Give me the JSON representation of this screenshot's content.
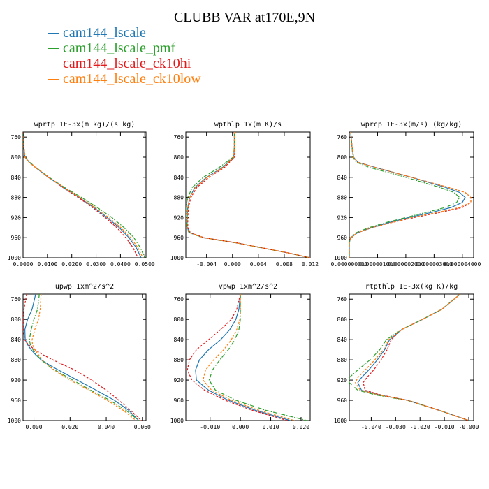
{
  "title": "CLUBB VAR at170E,9N",
  "legend": [
    {
      "name": "cam144_lscale",
      "color": "#1f77b4"
    },
    {
      "name": "cam144_lscale_pmf",
      "color": "#2ca02c"
    },
    {
      "name": "cam144_lscale_ck10hi",
      "color": "#e31a1c"
    },
    {
      "name": "cam144_lscale_ck10low",
      "color": "#ff7f0e"
    }
  ],
  "chart_data": [
    {
      "type": "line",
      "title": "wprtp  1E-3x(m kg)/(s kg)",
      "xlim": [
        0,
        0.0505
      ],
      "ylim": [
        750,
        1000
      ],
      "x_ticks": [
        "0.0000",
        "0.0100",
        "0.0200",
        "0.0300",
        "0.0400",
        "0.0500"
      ],
      "x_tick_values": [
        0,
        0.01,
        0.02,
        0.03,
        0.04,
        0.05
      ],
      "y_ticks": [
        "760",
        "800",
        "840",
        "880",
        "920",
        "960",
        "1000"
      ],
      "y_tick_values": [
        760,
        800,
        840,
        880,
        920,
        960,
        1000
      ],
      "y": [
        750,
        760,
        780,
        800,
        810,
        820,
        840,
        860,
        880,
        900,
        920,
        940,
        960,
        980,
        1000
      ],
      "series": [
        {
          "name": "cam144_lscale",
          "style": "solid",
          "x": [
            0.0004,
            0.0003,
            0.0003,
            0.0008,
            0.0025,
            0.005,
            0.0105,
            0.0165,
            0.023,
            0.029,
            0.0345,
            0.0395,
            0.0435,
            0.0465,
            0.0485
          ]
        },
        {
          "name": "cam144_lscale_pmf",
          "style": "dashdot",
          "x": [
            0.0004,
            0.0003,
            0.0003,
            0.0009,
            0.0027,
            0.0052,
            0.0107,
            0.017,
            0.024,
            0.0305,
            0.0365,
            0.0415,
            0.0455,
            0.0482,
            0.05
          ]
        },
        {
          "name": "cam144_lscale_ck10hi",
          "style": "dashed",
          "x": [
            0.0004,
            0.0003,
            0.0003,
            0.0008,
            0.0025,
            0.005,
            0.0104,
            0.0163,
            0.0226,
            0.0285,
            0.0338,
            0.0385,
            0.0422,
            0.0452,
            0.0472
          ]
        },
        {
          "name": "cam144_lscale_ck10low",
          "style": "dashed",
          "x": [
            0.0004,
            0.0003,
            0.0003,
            0.0008,
            0.0025,
            0.005,
            0.0106,
            0.0167,
            0.0233,
            0.0295,
            0.0352,
            0.0402,
            0.0442,
            0.0472,
            0.0492
          ]
        }
      ]
    },
    {
      "type": "line",
      "title": "wpthlp  1x(m K)/s",
      "xlim": [
        -0.0072,
        0.012
      ],
      "ylim": [
        750,
        1000
      ],
      "x_ticks": [
        "-0.004",
        "0.000",
        "0.004",
        "0.008",
        "0.012"
      ],
      "x_tick_values": [
        -0.004,
        0,
        0.004,
        0.008,
        0.012
      ],
      "y_ticks": [
        "760",
        "800",
        "840",
        "880",
        "920",
        "960",
        "1000"
      ],
      "y_tick_values": [
        760,
        800,
        840,
        880,
        920,
        960,
        1000
      ],
      "y": [
        750,
        780,
        800,
        820,
        840,
        860,
        880,
        900,
        920,
        940,
        950,
        960,
        970,
        980,
        990,
        1000
      ],
      "series": [
        {
          "name": "cam144_lscale",
          "style": "solid",
          "x": [
            0.0003,
            0.0003,
            0.0002,
            -0.0015,
            -0.004,
            -0.0058,
            -0.0066,
            -0.0069,
            -0.007,
            -0.007,
            -0.0066,
            -0.0045,
            0.0005,
            0.0045,
            0.0085,
            0.012
          ]
        },
        {
          "name": "cam144_lscale_pmf",
          "style": "dashdot",
          "x": [
            0.0003,
            0.0003,
            0.0001,
            -0.002,
            -0.0045,
            -0.0062,
            -0.0069,
            -0.0072,
            -0.0072,
            -0.0071,
            -0.0067,
            -0.0046,
            0.0004,
            0.0044,
            0.0084,
            0.0119
          ]
        },
        {
          "name": "cam144_lscale_ck10hi",
          "style": "dashed",
          "x": [
            0.0003,
            0.0003,
            0.0003,
            -0.0012,
            -0.0036,
            -0.0055,
            -0.0064,
            -0.0068,
            -0.0069,
            -0.0069,
            -0.0065,
            -0.0044,
            0.0005,
            0.0045,
            0.0085,
            0.012
          ]
        },
        {
          "name": "cam144_lscale_ck10low",
          "style": "dashed",
          "x": [
            0.0003,
            0.0003,
            0.0002,
            -0.0014,
            -0.0039,
            -0.0057,
            -0.0066,
            -0.0069,
            -0.007,
            -0.007,
            -0.0066,
            -0.0045,
            0.0005,
            0.0045,
            0.0085,
            0.012
          ]
        }
      ]
    },
    {
      "type": "line",
      "title": "wprcp  1E-3x(m/s) (kg/kg)",
      "xlim": [
        0,
        4.4e-06
      ],
      "ylim": [
        750,
        1000
      ],
      "x_ticks": [
        "0.000000000",
        "0.000001000",
        "0.000002000",
        "0.000003000",
        "0.000004000"
      ],
      "x_tick_values": [
        0,
        1e-06,
        2e-06,
        3e-06,
        4e-06
      ],
      "y_ticks": [
        "760",
        "800",
        "840",
        "880",
        "920",
        "960",
        "1000"
      ],
      "y_tick_values": [
        760,
        800,
        840,
        880,
        920,
        960,
        1000
      ],
      "y": [
        750,
        780,
        800,
        810,
        820,
        840,
        860,
        870,
        880,
        890,
        900,
        910,
        920,
        930,
        940,
        950,
        960,
        970,
        980,
        1000
      ],
      "series": [
        {
          "name": "cam144_lscale",
          "style": "solid",
          "x": [
            5e-08,
            1e-07,
            1.5e-07,
            3e-07,
            9e-07,
            2.2e-06,
            3.4e-06,
            3.9e-06,
            4.1e-06,
            4e-06,
            3.6e-06,
            2.9e-06,
            2.1e-06,
            1.4e-06,
            8e-07,
            3e-07,
            5e-08,
            0,
            0,
            0
          ]
        },
        {
          "name": "cam144_lscale_pmf",
          "style": "dashdot",
          "x": [
            5e-08,
            1e-07,
            1.2e-07,
            2.5e-07,
            7e-07,
            2e-06,
            3.2e-06,
            3.7e-06,
            3.9e-06,
            3.8e-06,
            3.4e-06,
            2.7e-06,
            2e-06,
            1.3e-06,
            7e-07,
            2.5e-07,
            5e-08,
            0,
            0,
            0
          ]
        },
        {
          "name": "cam144_lscale_ck10hi",
          "style": "dashed",
          "x": [
            5e-08,
            1e-07,
            1.5e-07,
            3e-07,
            9e-07,
            2.2e-06,
            3.5e-06,
            4.1e-06,
            4.3e-06,
            4.3e-06,
            4e-06,
            3.2e-06,
            2.3e-06,
            1.5e-06,
            8e-07,
            3e-07,
            5e-08,
            0,
            0,
            0
          ]
        },
        {
          "name": "cam144_lscale_ck10low",
          "style": "dashed",
          "x": [
            5e-08,
            1e-07,
            1.5e-07,
            3e-07,
            9e-07,
            2.2e-06,
            3.5e-06,
            4.1e-06,
            4.3e-06,
            4.3e-06,
            3.9e-06,
            3.1e-06,
            2.2e-06,
            1.5e-06,
            8e-07,
            3e-07,
            5e-08,
            0,
            0,
            0
          ]
        }
      ]
    },
    {
      "type": "line",
      "title": "upwp  1xm^2/s^2",
      "xlim": [
        -0.006,
        0.062
      ],
      "ylim": [
        750,
        1000
      ],
      "x_ticks": [
        "0.000",
        "0.020",
        "0.040",
        "0.060"
      ],
      "x_tick_values": [
        0,
        0.02,
        0.04,
        0.06
      ],
      "y_ticks": [
        "760",
        "800",
        "840",
        "880",
        "920",
        "960",
        "1000"
      ],
      "y_tick_values": [
        760,
        800,
        840,
        880,
        920,
        960,
        1000
      ],
      "y": [
        750,
        780,
        800,
        820,
        840,
        850,
        860,
        870,
        880,
        890,
        900,
        920,
        940,
        960,
        980,
        1000
      ],
      "series": [
        {
          "name": "cam144_lscale",
          "style": "solid",
          "x": [
            0.001,
            -0.001,
            -0.0035,
            -0.005,
            -0.0048,
            -0.0035,
            -0.0015,
            0.001,
            0.004,
            0.0085,
            0.0135,
            0.024,
            0.0345,
            0.0445,
            0.0525,
            0.058
          ]
        },
        {
          "name": "cam144_lscale_pmf",
          "style": "dashdot",
          "x": [
            0.003,
            0.002,
            0.0,
            -0.0015,
            -0.0025,
            -0.002,
            -0.0005,
            0.0015,
            0.004,
            0.0075,
            0.0115,
            0.0215,
            0.0315,
            0.042,
            0.051,
            0.058
          ]
        },
        {
          "name": "cam144_lscale_ck10hi",
          "style": "dashed",
          "x": [
            -0.004,
            -0.0055,
            -0.0058,
            -0.0058,
            -0.0052,
            -0.003,
            0.0005,
            0.005,
            0.0105,
            0.0165,
            0.0225,
            0.032,
            0.04,
            0.047,
            0.0535,
            0.0595
          ]
        },
        {
          "name": "cam144_lscale_ck10low",
          "style": "dashed",
          "x": [
            0.004,
            0.0035,
            0.0025,
            0.0005,
            -0.001,
            -0.0008,
            0.0005,
            0.0025,
            0.0045,
            0.0075,
            0.011,
            0.02,
            0.0305,
            0.0405,
            0.0495,
            0.0565
          ]
        }
      ]
    },
    {
      "type": "line",
      "title": "vpwp  1xm^2/s^2",
      "xlim": [
        -0.018,
        0.023
      ],
      "ylim": [
        750,
        1000
      ],
      "x_ticks": [
        "-0.010",
        "0.000",
        "0.010",
        "0.020"
      ],
      "x_tick_values": [
        -0.01,
        0,
        0.01,
        0.02
      ],
      "y_ticks": [
        "760",
        "800",
        "840",
        "880",
        "920",
        "960",
        "1000"
      ],
      "y_tick_values": [
        760,
        800,
        840,
        880,
        920,
        960,
        1000
      ],
      "y": [
        750,
        780,
        800,
        820,
        840,
        860,
        880,
        900,
        920,
        940,
        960,
        980,
        1000
      ],
      "series": [
        {
          "name": "cam144_lscale",
          "style": "solid",
          "x": [
            0.0,
            -0.0005,
            -0.0015,
            -0.0035,
            -0.0065,
            -0.0105,
            -0.0135,
            -0.0148,
            -0.0145,
            -0.0105,
            -0.004,
            0.005,
            0.0165
          ]
        },
        {
          "name": "cam144_lscale_pmf",
          "style": "dashdot",
          "x": [
            0.0,
            0.0,
            0.0,
            -0.0005,
            -0.0018,
            -0.004,
            -0.0068,
            -0.0092,
            -0.0103,
            -0.0082,
            -0.0015,
            0.0085,
            0.022
          ]
        },
        {
          "name": "cam144_lscale_ck10hi",
          "style": "dashed",
          "x": [
            0.0,
            -0.0012,
            -0.003,
            -0.0065,
            -0.0105,
            -0.0145,
            -0.0168,
            -0.0175,
            -0.016,
            -0.0118,
            -0.005,
            0.004,
            0.0155
          ]
        },
        {
          "name": "cam144_lscale_ck10low",
          "style": "dashed",
          "x": [
            0.0,
            0.0,
            -0.0002,
            -0.0012,
            -0.003,
            -0.0055,
            -0.0088,
            -0.0115,
            -0.0123,
            -0.0095,
            -0.003,
            0.0062,
            0.0178
          ]
        }
      ]
    },
    {
      "type": "line",
      "title": "rtpthlp  1E-3x(kg K)/kg",
      "xlim": [
        -0.049,
        0.002
      ],
      "ylim": [
        750,
        1000
      ],
      "x_ticks": [
        "-0.040",
        "-0.030",
        "-0.020",
        "-0.010",
        "-0.000"
      ],
      "x_tick_values": [
        -0.04,
        -0.03,
        -0.02,
        -0.01,
        0
      ],
      "y_ticks": [
        "760",
        "800",
        "840",
        "880",
        "920",
        "960",
        "1000"
      ],
      "y_tick_values": [
        760,
        800,
        840,
        880,
        920,
        960,
        1000
      ],
      "y": [
        750,
        760,
        780,
        800,
        820,
        840,
        860,
        880,
        900,
        915,
        925,
        940,
        950,
        960,
        980,
        1000
      ],
      "series": [
        {
          "name": "cam144_lscale",
          "style": "solid",
          "x": [
            -0.0035,
            -0.006,
            -0.011,
            -0.019,
            -0.0275,
            -0.0325,
            -0.0345,
            -0.0375,
            -0.041,
            -0.044,
            -0.0455,
            -0.044,
            -0.036,
            -0.025,
            -0.012,
            0.0
          ]
        },
        {
          "name": "cam144_lscale_pmf",
          "style": "dashdot",
          "x": [
            -0.0035,
            -0.006,
            -0.011,
            -0.019,
            -0.0275,
            -0.0338,
            -0.0365,
            -0.0405,
            -0.0455,
            -0.049,
            -0.049,
            -0.0455,
            -0.0375,
            -0.0255,
            -0.012,
            0.0
          ]
        },
        {
          "name": "cam144_lscale_ck10hi",
          "style": "dashed",
          "x": [
            -0.0035,
            -0.006,
            -0.011,
            -0.019,
            -0.0275,
            -0.0318,
            -0.0335,
            -0.036,
            -0.039,
            -0.0418,
            -0.0433,
            -0.0425,
            -0.0355,
            -0.025,
            -0.012,
            0.0
          ]
        },
        {
          "name": "cam144_lscale_ck10low",
          "style": "dashed",
          "x": [
            -0.0035,
            -0.006,
            -0.011,
            -0.019,
            -0.0275,
            -0.0328,
            -0.035,
            -0.0385,
            -0.0425,
            -0.0455,
            -0.0465,
            -0.0445,
            -0.0362,
            -0.025,
            -0.012,
            0.0
          ]
        }
      ]
    }
  ]
}
